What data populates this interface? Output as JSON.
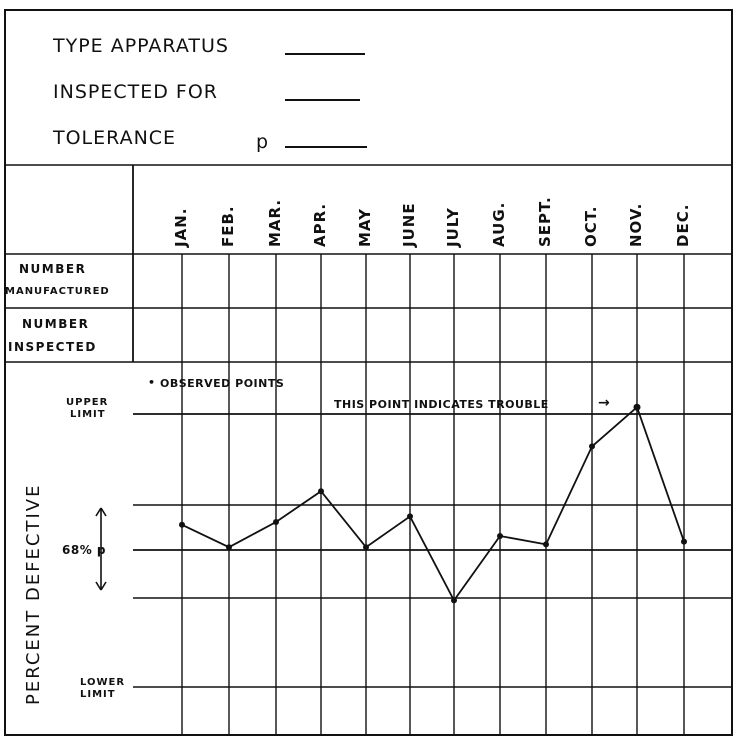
{
  "header": {
    "type_label": "TYPE APPARATUS",
    "inspected_label": "INSPECTED FOR",
    "tolerance_label": "TOLERANCE",
    "p_label": "p"
  },
  "rows": {
    "manufactured_line1": "NUMBER",
    "manufactured_line2": "MANUFACTURED",
    "inspected_line1": "NUMBER",
    "inspected_line2": "INSPECTED"
  },
  "chart_data": {
    "type": "line",
    "categories": [
      "JAN.",
      "FEB.",
      "MAR.",
      "APR.",
      "MAY",
      "JUNE",
      "JULY",
      "AUG.",
      "SEPT.",
      "OCT.",
      "NOV.",
      "DEC."
    ],
    "ylabel": "PERCENT DEFECTIVE",
    "y_scale": "relative: 0 = lower limit, 1 = upper limit",
    "upper_limit_label_line1": "UPPER",
    "upper_limit_label_line2": "LIMIT",
    "lower_limit_label_line1": "LOWER",
    "lower_limit_label_line2": "LIMIT",
    "center_label": "68% p",
    "legend": "OBSERVED POINTS",
    "annotation": "THIS POINT INDICATES TROUBLE",
    "annotation_arrow": "→",
    "series": [
      {
        "values": [
          0.59,
          0.51,
          0.6,
          0.71,
          0.51,
          0.62,
          0.32,
          0.55,
          0.52,
          0.87,
          1.01,
          0.53
        ]
      }
    ],
    "trouble_index": 10,
    "grid": true,
    "colors": {
      "ink": "#111111",
      "paper": "#ffffff"
    }
  }
}
